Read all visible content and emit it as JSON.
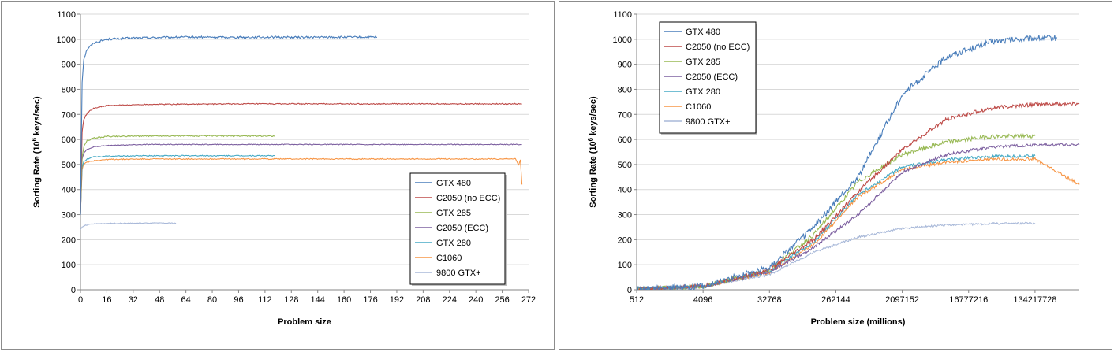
{
  "chart_data": [
    {
      "type": "line",
      "xlabel": "Problem size",
      "ylabel_prefix": "Sorting Rate (10",
      "ylabel_sup": "6",
      "ylabel_suffix": " keys/sec)",
      "ylim": [
        0,
        1100
      ],
      "yticks": [
        "0",
        "100",
        "200",
        "300",
        "400",
        "500",
        "600",
        "700",
        "800",
        "900",
        "1000",
        "1100"
      ],
      "xlim": [
        0,
        272
      ],
      "xticks": [
        "0",
        "16",
        "32",
        "48",
        "64",
        "80",
        "96",
        "112",
        "128",
        "144",
        "160",
        "176",
        "192",
        "208",
        "224",
        "240",
        "256",
        "272"
      ],
      "grid": "horizontal",
      "legend_position": "lower-right",
      "series": [
        {
          "name": "GTX 480",
          "color": "#4a7ebb",
          "noise": 4,
          "points": [
            [
              0,
              300
            ],
            [
              1,
              830
            ],
            [
              2,
              920
            ],
            [
              4,
              960
            ],
            [
              8,
              985
            ],
            [
              16,
              1000
            ],
            [
              32,
              1005
            ],
            [
              60,
              1008
            ],
            [
              120,
              1008
            ],
            [
              180,
              1008
            ]
          ]
        },
        {
          "name": "C2050 (no ECC)",
          "color": "#be4b48",
          "noise": 2,
          "points": [
            [
              0,
              300
            ],
            [
              1,
              630
            ],
            [
              2,
              680
            ],
            [
              4,
              705
            ],
            [
              8,
              725
            ],
            [
              16,
              735
            ],
            [
              40,
              740
            ],
            [
              100,
              742
            ],
            [
              200,
              742
            ],
            [
              268,
              742
            ]
          ]
        },
        {
          "name": "GTX 285",
          "color": "#98b954",
          "noise": 2.5,
          "points": [
            [
              0,
              300
            ],
            [
              1,
              530
            ],
            [
              2,
              570
            ],
            [
              4,
              595
            ],
            [
              8,
              605
            ],
            [
              16,
              612
            ],
            [
              40,
              614
            ],
            [
              118,
              614
            ]
          ]
        },
        {
          "name": "C2050 (ECC)",
          "color": "#7d60a0",
          "noise": 1.5,
          "points": [
            [
              0,
              300
            ],
            [
              1,
              520
            ],
            [
              2,
              545
            ],
            [
              4,
              560
            ],
            [
              8,
              570
            ],
            [
              16,
              576
            ],
            [
              40,
              580
            ],
            [
              268,
              580
            ]
          ]
        },
        {
          "name": "GTX 280",
          "color": "#46aac5",
          "noise": 2,
          "points": [
            [
              0,
              300
            ],
            [
              1,
              490
            ],
            [
              2,
              510
            ],
            [
              4,
              522
            ],
            [
              8,
              530
            ],
            [
              16,
              533
            ],
            [
              40,
              535
            ],
            [
              118,
              535
            ]
          ]
        },
        {
          "name": "C1060",
          "color": "#f79646",
          "noise": 2,
          "points": [
            [
              0,
              300
            ],
            [
              1,
              480
            ],
            [
              2,
              500
            ],
            [
              4,
              510
            ],
            [
              8,
              515
            ],
            [
              16,
              520
            ],
            [
              40,
              522
            ],
            [
              264,
              522
            ],
            [
              266,
              500
            ],
            [
              267,
              520
            ],
            [
              268,
              420
            ]
          ]
        },
        {
          "name": "9800 GTX+",
          "color": "#a9b9d9",
          "noise": 1.5,
          "points": [
            [
              0,
              240
            ],
            [
              1,
              250
            ],
            [
              3,
              258
            ],
            [
              8,
              263
            ],
            [
              16,
              265
            ],
            [
              40,
              266
            ],
            [
              58,
              266
            ]
          ]
        }
      ]
    },
    {
      "type": "line",
      "xlabel": "Problem size  (millions)",
      "ylabel_prefix": "Sorting Rate (10",
      "ylabel_sup": "6",
      "ylabel_suffix": " keys/sec)",
      "ylim": [
        0,
        1100
      ],
      "yticks": [
        "0",
        "100",
        "200",
        "300",
        "400",
        "500",
        "600",
        "700",
        "800",
        "900",
        "1000",
        "1100"
      ],
      "xscale": "log2",
      "xlim": [
        512,
        536870912
      ],
      "xticks": [
        "512",
        "4096",
        "32768",
        "262144",
        "2097152",
        "16777216",
        "134217728"
      ],
      "grid": "horizontal",
      "legend_position": "top-left",
      "series": [
        {
          "name": "GTX 480",
          "color": "#4a7ebb",
          "noise": 12,
          "points": [
            [
              512,
              3
            ],
            [
              4096,
              15
            ],
            [
              32768,
              90
            ],
            [
              131072,
              250
            ],
            [
              524288,
              450
            ],
            [
              2097152,
              780
            ],
            [
              8388608,
              930
            ],
            [
              33554432,
              990
            ],
            [
              134217728,
              1005
            ],
            [
              268435456,
              1005
            ]
          ]
        },
        {
          "name": "C2050 (no ECC)",
          "color": "#be4b48",
          "noise": 8,
          "points": [
            [
              512,
              3
            ],
            [
              4096,
              13
            ],
            [
              32768,
              80
            ],
            [
              131072,
              200
            ],
            [
              524288,
              390
            ],
            [
              2097152,
              560
            ],
            [
              8388608,
              680
            ],
            [
              33554432,
              725
            ],
            [
              134217728,
              740
            ],
            [
              536870912,
              742
            ]
          ]
        },
        {
          "name": "GTX 285",
          "color": "#98b954",
          "noise": 8,
          "points": [
            [
              512,
              3
            ],
            [
              4096,
              13
            ],
            [
              32768,
              80
            ],
            [
              131072,
              220
            ],
            [
              524288,
              430
            ],
            [
              2097152,
              540
            ],
            [
              8388608,
              590
            ],
            [
              33554432,
              612
            ],
            [
              134217728,
              614
            ]
          ]
        },
        {
          "name": "C2050 (ECC)",
          "color": "#7d60a0",
          "noise": 6,
          "points": [
            [
              512,
              3
            ],
            [
              4096,
              12
            ],
            [
              32768,
              70
            ],
            [
              131072,
              170
            ],
            [
              524288,
              300
            ],
            [
              2097152,
              470
            ],
            [
              8388608,
              540
            ],
            [
              33554432,
              570
            ],
            [
              134217728,
              578
            ],
            [
              536870912,
              580
            ]
          ]
        },
        {
          "name": "GTX 280",
          "color": "#46aac5",
          "noise": 6,
          "points": [
            [
              512,
              3
            ],
            [
              4096,
              12
            ],
            [
              32768,
              75
            ],
            [
              131072,
              190
            ],
            [
              524288,
              380
            ],
            [
              2097152,
              490
            ],
            [
              8388608,
              520
            ],
            [
              33554432,
              532
            ],
            [
              134217728,
              535
            ]
          ]
        },
        {
          "name": "C1060",
          "color": "#f79646",
          "noise": 6,
          "points": [
            [
              512,
              3
            ],
            [
              4096,
              12
            ],
            [
              32768,
              70
            ],
            [
              131072,
              180
            ],
            [
              524288,
              370
            ],
            [
              2097152,
              480
            ],
            [
              8388608,
              510
            ],
            [
              33554432,
              520
            ],
            [
              134217728,
              522
            ],
            [
              536870912,
              420
            ]
          ]
        },
        {
          "name": "9800 GTX+",
          "color": "#a9b9d9",
          "noise": 4,
          "points": [
            [
              512,
              3
            ],
            [
              4096,
              12
            ],
            [
              32768,
              60
            ],
            [
              131072,
              150
            ],
            [
              524288,
              210
            ],
            [
              2097152,
              245
            ],
            [
              8388608,
              258
            ],
            [
              33554432,
              264
            ],
            [
              134217728,
              266
            ]
          ]
        }
      ]
    }
  ]
}
